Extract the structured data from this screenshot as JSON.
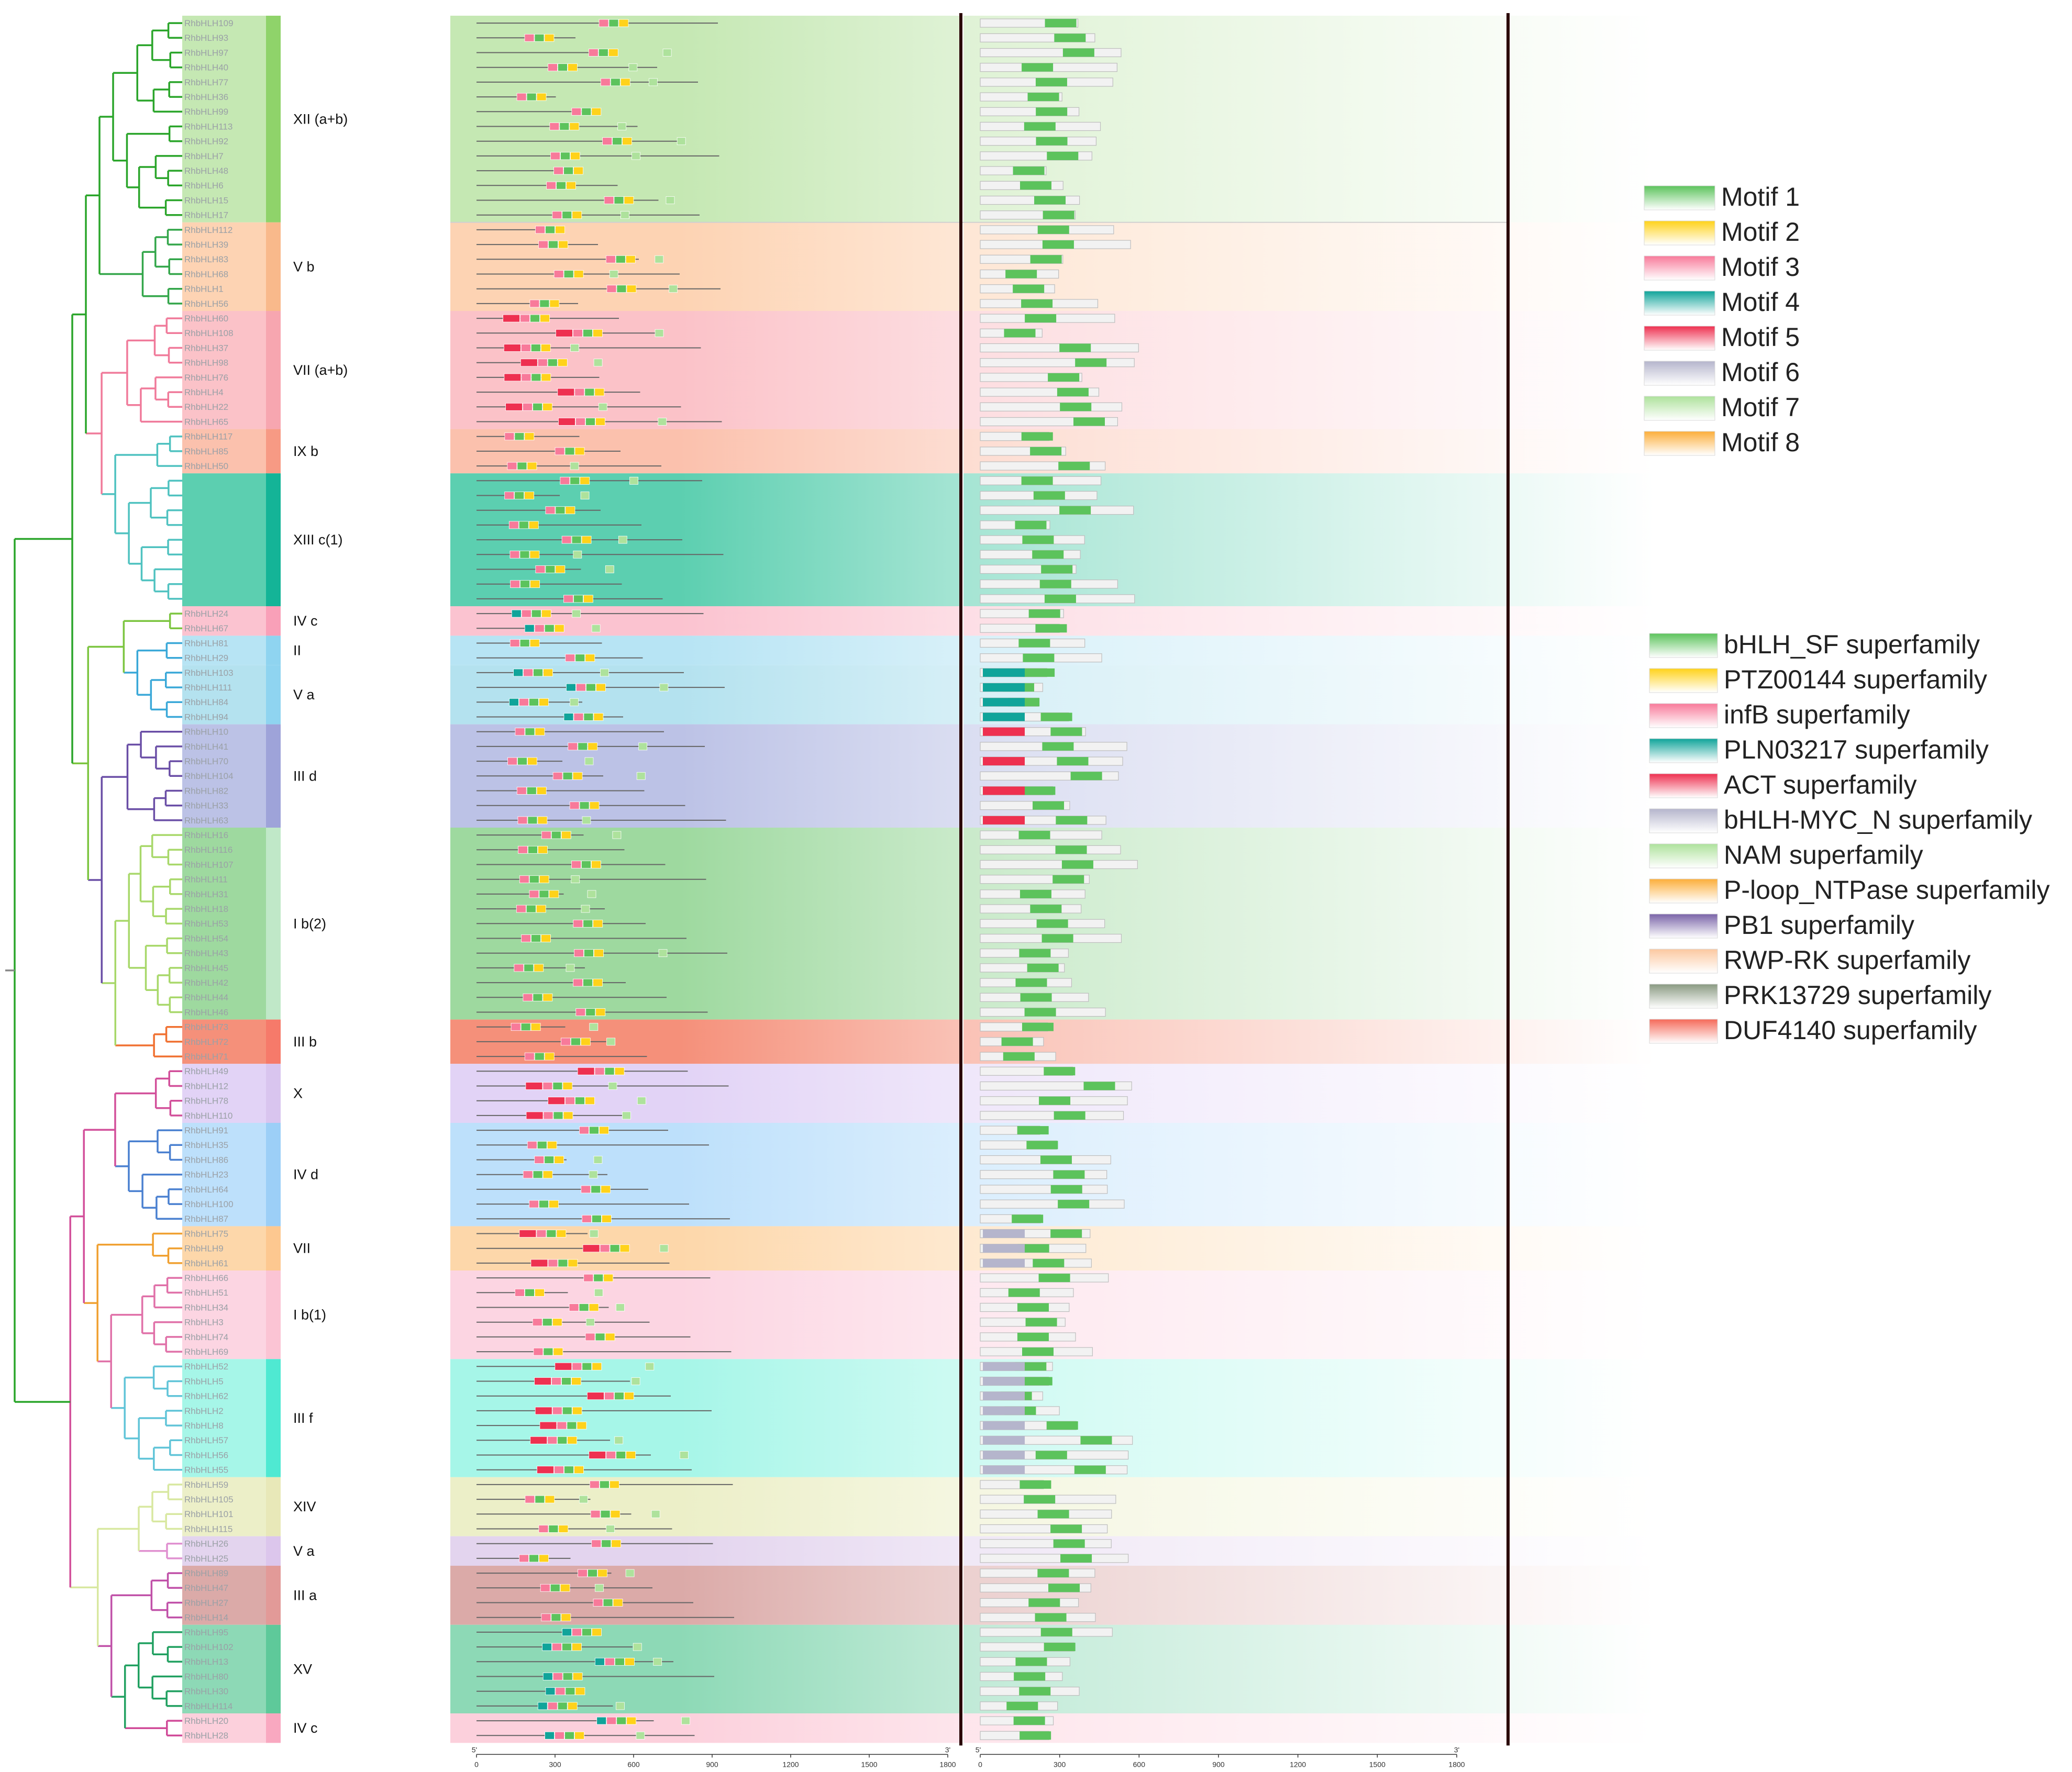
{
  "genes": [
    {
      "id": "RhbHLH109",
      "clade": 0
    },
    {
      "id": "RhbHLH93",
      "clade": 0
    },
    {
      "id": "RhbHLH97",
      "clade": 0
    },
    {
      "id": "RhbHLH40",
      "clade": 0
    },
    {
      "id": "RhbHLH77",
      "clade": 0
    },
    {
      "id": "RhbHLH36",
      "clade": 0
    },
    {
      "id": "RhbHLH99",
      "clade": 0
    },
    {
      "id": "RhbHLH113",
      "clade": 0
    },
    {
      "id": "RhbHLH92",
      "clade": 0
    },
    {
      "id": "RhbHLH7",
      "clade": 0
    },
    {
      "id": "RhbHLH48",
      "clade": 0
    },
    {
      "id": "RhbHLH6",
      "clade": 0
    },
    {
      "id": "RhbHLH15",
      "clade": 0
    },
    {
      "id": "RhbHLH17",
      "clade": 0
    },
    {
      "id": "RhbHLH112",
      "clade": 1
    },
    {
      "id": "RhbHLH39",
      "clade": 1
    },
    {
      "id": "RhbHLH83",
      "clade": 1
    },
    {
      "id": "RhbHLH68",
      "clade": 1
    },
    {
      "id": "RhbHLH1",
      "clade": 1
    },
    {
      "id": "RhbHLH56",
      "clade": 1
    },
    {
      "id": "RhbHLH60",
      "clade": 2
    },
    {
      "id": "RhbHLH108",
      "clade": 2
    },
    {
      "id": "RhbHLH37",
      "clade": 2
    },
    {
      "id": "RhbHLH98",
      "clade": 2
    },
    {
      "id": "RhbHLH76",
      "clade": 2
    },
    {
      "id": "RhbHLH4",
      "clade": 2
    },
    {
      "id": "RhbHLH22",
      "clade": 2
    },
    {
      "id": "RhbHLH65",
      "clade": 2
    },
    {
      "id": "RhbHLH117",
      "clade": 3
    },
    {
      "id": "RhbHLH85",
      "clade": 3
    },
    {
      "id": "RhbHLH50",
      "clade": 3
    },
    {
      "id": "",
      "clade": 4
    },
    {
      "id": "",
      "clade": 4
    },
    {
      "id": "",
      "clade": 4
    },
    {
      "id": "",
      "clade": 4
    },
    {
      "id": "",
      "clade": 4
    },
    {
      "id": "",
      "clade": 4
    },
    {
      "id": "",
      "clade": 4
    },
    {
      "id": "",
      "clade": 4
    },
    {
      "id": "",
      "clade": 4
    },
    {
      "id": "RhbHLH24",
      "clade": 5
    },
    {
      "id": "RhbHLH67",
      "clade": 5
    },
    {
      "id": "RhbHLH81",
      "clade": 6
    },
    {
      "id": "RhbHLH29",
      "clade": 6
    },
    {
      "id": "RhbHLH103",
      "clade": 7
    },
    {
      "id": "RhbHLH111",
      "clade": 7
    },
    {
      "id": "RhbHLH84",
      "clade": 7
    },
    {
      "id": "RhbHLH94",
      "clade": 7
    },
    {
      "id": "RhbHLH10",
      "clade": 8
    },
    {
      "id": "RhbHLH41",
      "clade": 8
    },
    {
      "id": "RhbHLH70",
      "clade": 8
    },
    {
      "id": "RhbHLH104",
      "clade": 8
    },
    {
      "id": "RhbHLH82",
      "clade": 8
    },
    {
      "id": "RhbHLH33",
      "clade": 8
    },
    {
      "id": "RhbHLH63",
      "clade": 8
    },
    {
      "id": "RhbHLH16",
      "clade": 9
    },
    {
      "id": "RhbHLH116",
      "clade": 9
    },
    {
      "id": "RhbHLH107",
      "clade": 9
    },
    {
      "id": "RhbHLH11",
      "clade": 9
    },
    {
      "id": "RhbHLH31",
      "clade": 9
    },
    {
      "id": "RhbHLH18",
      "clade": 9
    },
    {
      "id": "RhbHLH53",
      "clade": 9
    },
    {
      "id": "RhbHLH54",
      "clade": 9
    },
    {
      "id": "RhbHLH43",
      "clade": 9
    },
    {
      "id": "RhbHLH45",
      "clade": 9
    },
    {
      "id": "RhbHLH42",
      "clade": 9
    },
    {
      "id": "RhbHLH44",
      "clade": 9
    },
    {
      "id": "RhbHLH46",
      "clade": 9
    },
    {
      "id": "RhbHLH73",
      "clade": 10
    },
    {
      "id": "RhbHLH72",
      "clade": 10
    },
    {
      "id": "RhbHLH71",
      "clade": 10
    },
    {
      "id": "RhbHLH49",
      "clade": 11
    },
    {
      "id": "RhbHLH12",
      "clade": 11
    },
    {
      "id": "RhbHLH78",
      "clade": 11
    },
    {
      "id": "RhbHLH110",
      "clade": 11
    },
    {
      "id": "RhbHLH91",
      "clade": 12
    },
    {
      "id": "RhbHLH35",
      "clade": 12
    },
    {
      "id": "RhbHLH86",
      "clade": 12
    },
    {
      "id": "RhbHLH23",
      "clade": 12
    },
    {
      "id": "RhbHLH64",
      "clade": 12
    },
    {
      "id": "RhbHLH100",
      "clade": 12
    },
    {
      "id": "RhbHLH87",
      "clade": 12
    },
    {
      "id": "RhbHLH75",
      "clade": 13
    },
    {
      "id": "RhbHLH9",
      "clade": 13
    },
    {
      "id": "RhbHLH61",
      "clade": 13
    },
    {
      "id": "RhbHLH66",
      "clade": 14
    },
    {
      "id": "RhbHLH51",
      "clade": 14
    },
    {
      "id": "RhbHLH34",
      "clade": 14
    },
    {
      "id": "RhbHLH3",
      "clade": 14
    },
    {
      "id": "RhbHLH74",
      "clade": 14
    },
    {
      "id": "RhbHLH69",
      "clade": 14
    },
    {
      "id": "RhbHLH52",
      "clade": 15
    },
    {
      "id": "RhbHLH5",
      "clade": 15
    },
    {
      "id": "RhbHLH62",
      "clade": 15
    },
    {
      "id": "RhbHLH2",
      "clade": 15
    },
    {
      "id": "RhbHLH8",
      "clade": 15
    },
    {
      "id": "RhbHLH57",
      "clade": 15
    },
    {
      "id": "RhbHLH56",
      "clade": 15
    },
    {
      "id": "RhbHLH55",
      "clade": 15
    },
    {
      "id": "RhbHLH59",
      "clade": 16
    },
    {
      "id": "RhbHLH105",
      "clade": 16
    },
    {
      "id": "RhbHLH101",
      "clade": 16
    },
    {
      "id": "RhbHLH115",
      "clade": 16
    },
    {
      "id": "RhbHLH26",
      "clade": 17
    },
    {
      "id": "RhbHLH25",
      "clade": 17
    },
    {
      "id": "RhbHLH89",
      "clade": 18
    },
    {
      "id": "RhbHLH47",
      "clade": 18
    },
    {
      "id": "RhbHLH27",
      "clade": 18
    },
    {
      "id": "RhbHLH14",
      "clade": 18
    },
    {
      "id": "RhbHLH95",
      "clade": 19
    },
    {
      "id": "RhbHLH102",
      "clade": 19
    },
    {
      "id": "RhbHLH13",
      "clade": 19
    },
    {
      "id": "RhbHLH80",
      "clade": 19
    },
    {
      "id": "RhbHLH30",
      "clade": 19
    },
    {
      "id": "RhbHLH114",
      "clade": 19
    },
    {
      "id": "RhbHLH20",
      "clade": 20
    },
    {
      "id": "RhbHLH28",
      "clade": 20
    }
  ],
  "clades": [
    {
      "label": "XII (a+b)",
      "color": "#8fd36a",
      "bg": "#c5e8b3",
      "branch": "#2aa52a"
    },
    {
      "label": "V b",
      "color": "#f9b98b",
      "bg": "#fdd3b3",
      "branch": "#33a64a"
    },
    {
      "label": "VII (a+b)",
      "color": "#f7a6b0",
      "bg": "#fbc2c8",
      "branch": "#f07a9a"
    },
    {
      "label": "IX b",
      "color": "#f79a84",
      "bg": "#fbc1ad",
      "branch": "#4fc2c0"
    },
    {
      "label": "XIII c(1)",
      "color": "#14b497",
      "bg": "#5ccfb0",
      "branch": "#4fc2c0"
    },
    {
      "label": "IV c",
      "color": "#f9a0b8",
      "bg": "#fbc3d0",
      "branch": "#7cc540"
    },
    {
      "label": "II",
      "color": "#8fd4f0",
      "bg": "#b7e4f4",
      "branch": "#3aa8d8"
    },
    {
      "label": "V a",
      "color": "#8fd4f0",
      "bg": "#b4e2ef",
      "branch": "#3aa8d8"
    },
    {
      "label": "III d",
      "color": "#9ea3d9",
      "bg": "#bcc2e6",
      "branch": "#6a4ea6"
    },
    {
      "label": "I b(2)",
      "color": "#c0e8c8",
      "bg": "#9ed99f",
      "branch": "#a8d86a"
    },
    {
      "label": "III b",
      "color": "#f67a6a",
      "bg": "#f5907a",
      "branch": "#f07030"
    },
    {
      "label": "X",
      "color": "#d9c5ef",
      "bg": "#e2d3f6",
      "branch": "#d24f9a"
    },
    {
      "label": "IV d",
      "color": "#9ccff7",
      "bg": "#bde0fb",
      "branch": "#4a80d0"
    },
    {
      "label": "VII",
      "color": "#fdc890",
      "bg": "#fdd7aa",
      "branch": "#f0a030"
    },
    {
      "label": "I b(1)",
      "color": "#fbc4d4",
      "bg": "#fcd5e2",
      "branch": "#e070a8"
    },
    {
      "label": "III f",
      "color": "#4fe9d2",
      "bg": "#a6f6e8",
      "branch": "#60c4d8"
    },
    {
      "label": "XIV",
      "color": "#e8e8b8",
      "bg": "#ecefc8",
      "branch": "#d8e8a0"
    },
    {
      "label": "V a",
      "color": "#dcc6ec",
      "bg": "#e3d4ee",
      "branch": "#e090d0"
    },
    {
      "label": "III a",
      "color": "#e29a98",
      "bg": "#dbaaa8",
      "branch": "#c050a8"
    },
    {
      "label": "XV",
      "color": "#5ec99a",
      "bg": "#8dd9b6",
      "branch": "#20a060"
    },
    {
      "label": "IV c",
      "color": "#f9a8c0",
      "bg": "#fcd0dc",
      "branch": "#d04a98"
    }
  ],
  "motif_legend": {
    "items": [
      {
        "label": "Motif 1",
        "color": "#5cc35c"
      },
      {
        "label": "Motif 2",
        "color": "#ffd21a"
      },
      {
        "label": "Motif 3",
        "color": "#f87a9a"
      },
      {
        "label": "Motif 4",
        "color": "#10a49a"
      },
      {
        "label": "Motif 5",
        "color": "#ee3050"
      },
      {
        "label": "Motif 6",
        "color": "#b5b5cc"
      },
      {
        "label": "Motif 7",
        "color": "#aee29c"
      },
      {
        "label": "Motif 8",
        "color": "#fcae3a"
      }
    ]
  },
  "domain_legend": {
    "items": [
      {
        "label": "bHLH_SF superfamily",
        "color": "#5cc35c"
      },
      {
        "label": "PTZ00144 superfamily",
        "color": "#ffd21a"
      },
      {
        "label": "infB superfamily",
        "color": "#f87a9a"
      },
      {
        "label": "PLN03217 superfamily",
        "color": "#10a49a"
      },
      {
        "label": "ACT superfamily",
        "color": "#ee3050"
      },
      {
        "label": "bHLH-MYC_N superfamily",
        "color": "#b5b5cc"
      },
      {
        "label": "NAM superfamily",
        "color": "#aee29c"
      },
      {
        "label": "P-loop_NTPase superfamily",
        "color": "#fcae3a"
      },
      {
        "label": "PB1 superfamily",
        "color": "#7a64a8"
      },
      {
        "label": "RWP-RK superfamily",
        "color": "#fcc8a0"
      },
      {
        "label": "PRK13729 superfamily",
        "color": "#8a9a82"
      },
      {
        "label": "DUF4140 superfamily",
        "color": "#f56a5a"
      }
    ]
  },
  "axis_motif": {
    "ticks": [
      "0",
      "300",
      "600",
      "900",
      "1200",
      "1500",
      "1800"
    ],
    "start": "5'",
    "end": "3'"
  },
  "axis_domain": {
    "ticks": [
      "0",
      "300",
      "600",
      "900",
      "1200",
      "1500",
      "1800"
    ],
    "start": "5'",
    "end": "3'"
  }
}
